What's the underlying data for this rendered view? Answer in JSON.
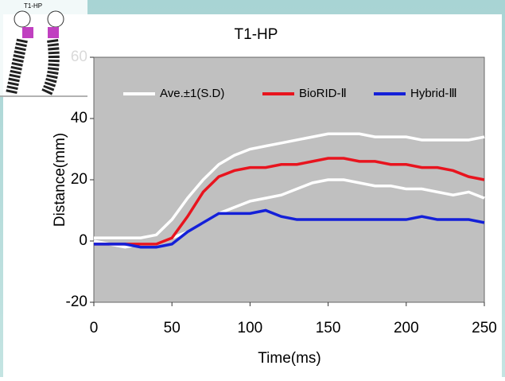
{
  "icon_label": "T1-HP",
  "chart_data": {
    "type": "line",
    "title": "T1-HP",
    "x_label": "Time(ms)",
    "y_label": "Distance(mm)",
    "x": [
      0,
      10,
      20,
      30,
      40,
      50,
      60,
      70,
      80,
      90,
      100,
      110,
      120,
      130,
      140,
      150,
      160,
      170,
      180,
      190,
      200,
      210,
      220,
      230,
      240,
      250
    ],
    "series": [
      {
        "name": "Ave.±1(S.D)",
        "color": "#ffffff",
        "upper": [
          1,
          1,
          1,
          1,
          2,
          7,
          14,
          20,
          25,
          28,
          30,
          31,
          32,
          33,
          34,
          35,
          35,
          35,
          34,
          34,
          34,
          33,
          33,
          33,
          33,
          34
        ],
        "lower": [
          0,
          -1,
          -2,
          -1,
          -1,
          1,
          3,
          6,
          9,
          11,
          13,
          14,
          15,
          17,
          19,
          20,
          20,
          19,
          18,
          18,
          17,
          17,
          16,
          15,
          16,
          14
        ]
      },
      {
        "name": "BioRID-Ⅱ",
        "color": "#e8141e",
        "values": [
          -1,
          -1,
          -1,
          -1,
          -1,
          1,
          8,
          16,
          21,
          23,
          24,
          24,
          25,
          25,
          26,
          27,
          27,
          26,
          26,
          25,
          25,
          24,
          24,
          23,
          21,
          20
        ]
      },
      {
        "name": "Hybrid-Ⅲ",
        "color": "#1420d8",
        "values": [
          -1,
          -1,
          -1,
          -2,
          -2,
          -1,
          3,
          6,
          9,
          9,
          9,
          10,
          8,
          7,
          7,
          7,
          7,
          7,
          7,
          7,
          7,
          8,
          7,
          7,
          7,
          6
        ]
      }
    ],
    "xlim": [
      0,
      250
    ],
    "xticks": [
      0,
      50,
      100,
      150,
      200,
      250
    ],
    "ylim": [
      -20,
      60
    ],
    "yticks": [
      -20,
      0,
      20,
      40,
      60
    ],
    "plot_color": "#c0c0c0",
    "legend": "top"
  }
}
